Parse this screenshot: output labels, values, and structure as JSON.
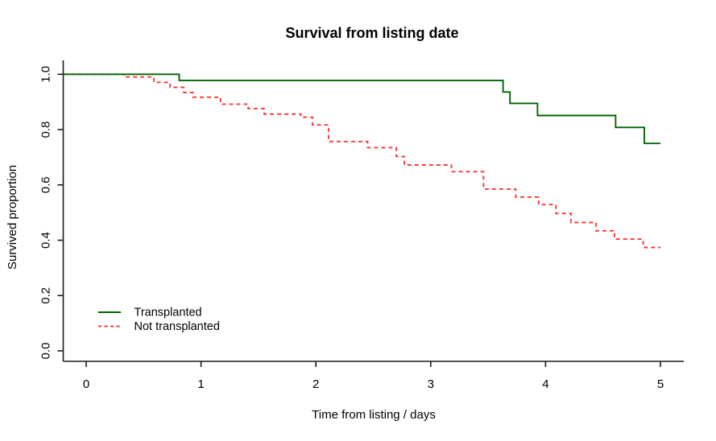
{
  "figure": {
    "background": "#ffffff",
    "axis_color": "#1a1a1a",
    "text_color": "#000000"
  },
  "chart_data": {
    "type": "line",
    "variant": "kaplan-meier-step-survival",
    "title": "Survival from listing date",
    "xlabel": "Time from listing / days",
    "ylabel": "Survived proportion",
    "xlim": [
      0,
      5
    ],
    "ylim": [
      0.0,
      1.0
    ],
    "xticks": [
      "0",
      "1",
      "2",
      "3",
      "4",
      "5"
    ],
    "yticks": [
      "0.0",
      "0.2",
      "0.4",
      "0.6",
      "0.8",
      "1.0"
    ],
    "grid": false,
    "legend": {
      "position": "inside-bottom-left",
      "border": "none"
    },
    "series": [
      {
        "name": "Transplanted",
        "color": "#006400",
        "line_style": "solid",
        "steps": [
          [
            0.0,
            1.0
          ],
          [
            0.81,
            0.978
          ],
          [
            3.63,
            0.936
          ],
          [
            3.69,
            0.895
          ],
          [
            3.93,
            0.851
          ],
          [
            4.61,
            0.808
          ],
          [
            4.86,
            0.75
          ]
        ],
        "end_time": 5.0
      },
      {
        "name": "Not transplanted",
        "color": "#fa3a3a",
        "line_style": "dashed",
        "steps": [
          [
            0.0,
            1.0
          ],
          [
            0.33,
            0.99
          ],
          [
            0.59,
            0.971
          ],
          [
            0.73,
            0.953
          ],
          [
            0.85,
            0.934
          ],
          [
            0.93,
            0.917
          ],
          [
            1.17,
            0.892
          ],
          [
            1.41,
            0.876
          ],
          [
            1.55,
            0.856
          ],
          [
            1.87,
            0.845
          ],
          [
            1.97,
            0.817
          ],
          [
            2.11,
            0.757
          ],
          [
            2.45,
            0.735
          ],
          [
            2.7,
            0.703
          ],
          [
            2.77,
            0.672
          ],
          [
            3.18,
            0.648
          ],
          [
            3.46,
            0.585
          ],
          [
            3.74,
            0.556
          ],
          [
            3.94,
            0.529
          ],
          [
            4.09,
            0.497
          ],
          [
            4.22,
            0.464
          ],
          [
            4.44,
            0.434
          ],
          [
            4.6,
            0.404
          ],
          [
            4.85,
            0.374
          ]
        ],
        "end_time": 5.0
      }
    ]
  }
}
